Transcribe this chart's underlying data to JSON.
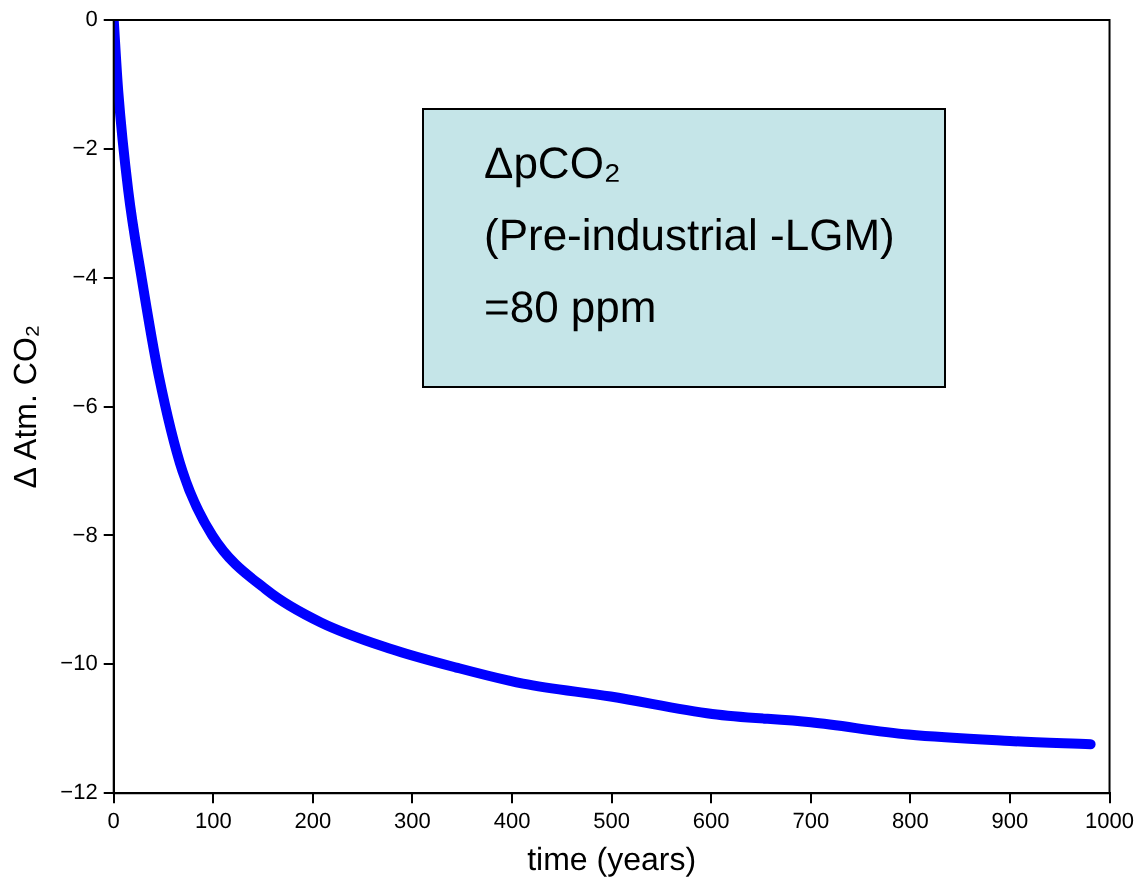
{
  "chart_data": {
    "type": "line",
    "xlabel": "time (years)",
    "ylabel": "Δ Atm. CO₂",
    "annotations": [
      "ΔpCO₂",
      "(Pre-industrial -LGM)",
      "=80 ppm"
    ],
    "x": [
      0,
      4.5,
      14.6,
      28,
      45,
      69,
      99,
      154,
      208,
      276,
      344,
      411,
      499,
      601,
      700,
      798,
      900,
      981
    ],
    "series": [
      {
        "color": "#0000ff",
        "values": [
          0,
          -1.1,
          -2.65,
          -4.0,
          -5.5,
          -7.0,
          -8.0,
          -8.85,
          -9.35,
          -9.75,
          -10.05,
          -10.3,
          -10.5,
          -10.77,
          -10.9,
          -11.09,
          -11.19,
          -11.24
        ]
      }
    ],
    "xlim": [
      0,
      1000
    ],
    "xticks": [
      0,
      100,
      200,
      300,
      400,
      500,
      600,
      700,
      800,
      900,
      1000
    ],
    "ylim": [
      -12,
      0
    ],
    "yticks": [
      -12,
      -10,
      -8,
      -6,
      -4,
      -2,
      0
    ],
    "grid": false,
    "legend": false,
    "marker": "none",
    "line_style": "solid"
  }
}
